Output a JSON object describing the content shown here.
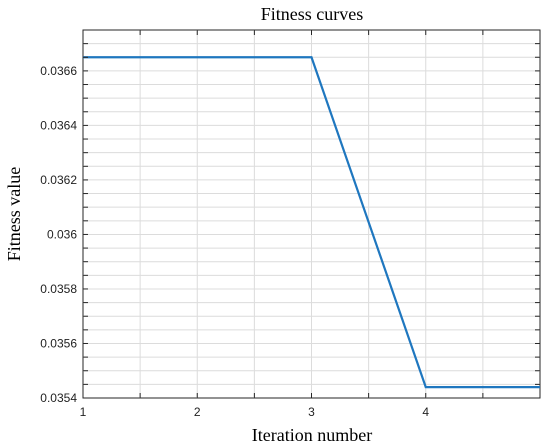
{
  "chart_data": {
    "type": "line",
    "title": "Fitness curves",
    "xlabel": "Iteration number",
    "ylabel": "Fitness value",
    "xlim": [
      1,
      5
    ],
    "ylim": [
      0.0354,
      0.03675
    ],
    "x_ticks": [
      1,
      2,
      3,
      4
    ],
    "x_tick_labels": [
      "1",
      "2",
      "3",
      "4"
    ],
    "y_ticks": [
      0.0354,
      0.0356,
      0.0358,
      0.036,
      0.0362,
      0.0364,
      0.0366
    ],
    "y_tick_labels": [
      "0.0354",
      "0.0356",
      "0.0358",
      "0.036",
      "0.0362",
      "0.0364",
      "0.0366"
    ],
    "grid": true,
    "series": [
      {
        "color": "#1f77bf",
        "x": [
          1,
          2,
          3,
          4,
          5
        ],
        "y": [
          0.03665,
          0.03665,
          0.03665,
          0.03544,
          0.03544
        ]
      }
    ]
  }
}
